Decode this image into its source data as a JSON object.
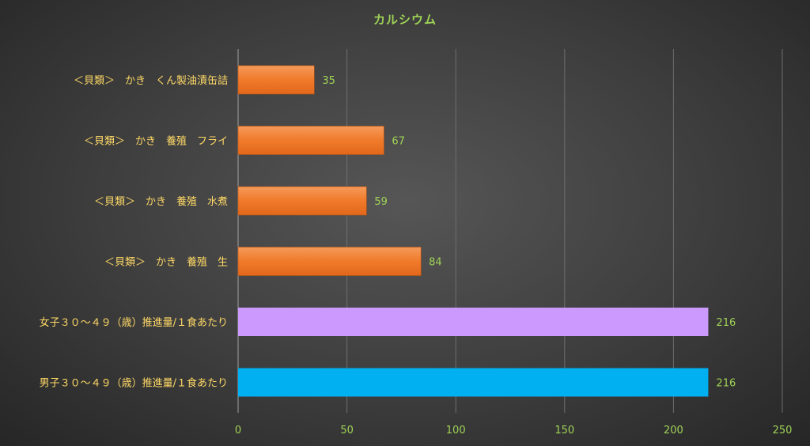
{
  "chart_data": {
    "type": "bar",
    "orientation": "horizontal",
    "title": "カルシウム",
    "categories": [
      "＜貝類＞　かき　くん製油漬缶詰",
      "＜貝類＞　かき　養殖　フライ",
      "＜貝類＞　かき　養殖　水煮",
      "＜貝類＞　かき　養殖　生",
      "女子３０～４９（歳）推進量/１食あたり",
      "男子３０～４９（歳）推進量/１食あたり"
    ],
    "values": [
      35,
      67,
      59,
      84,
      216,
      216
    ],
    "bar_colors": [
      "#f07a2a",
      "#f07a2a",
      "#f07a2a",
      "#f07a2a",
      "#cc99ff",
      "#00b0f0"
    ],
    "xlim": [
      0,
      250
    ],
    "xticks": [
      0,
      50,
      100,
      150,
      200,
      250
    ],
    "xlabel": "",
    "ylabel": "",
    "grid": "vertical",
    "legend": "none",
    "label_color": "#ffd966",
    "value_label_color": "#9fd356",
    "tick_label_color": "#9fd356",
    "title_color": "#9fd356"
  }
}
